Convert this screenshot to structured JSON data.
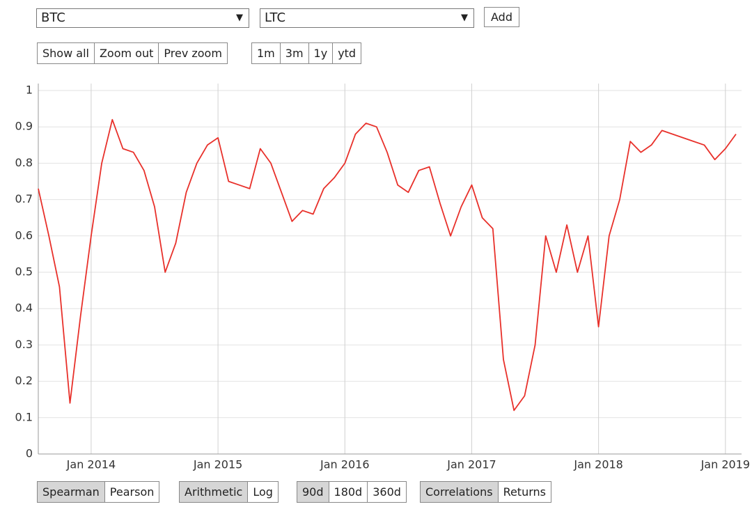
{
  "selectors": [
    "BTC",
    "LTC"
  ],
  "add_button": "Add",
  "zoom_buttons": [
    "Show all",
    "Zoom out",
    "Prev zoom"
  ],
  "range_buttons": [
    "1m",
    "3m",
    "1y",
    "ytd"
  ],
  "option_groups": [
    {
      "buttons": [
        "Spearman",
        "Pearson"
      ],
      "selected": 0
    },
    {
      "buttons": [
        "Arithmetic",
        "Log"
      ],
      "selected": 0
    },
    {
      "buttons": [
        "90d",
        "180d",
        "360d"
      ],
      "selected": 0
    },
    {
      "buttons": [
        "Correlations",
        "Returns"
      ],
      "selected": 0
    }
  ],
  "chart_data": {
    "type": "line",
    "x": [
      "2013-08",
      "2013-09",
      "2013-10",
      "2013-11",
      "2013-12",
      "2014-01",
      "2014-02",
      "2014-03",
      "2014-04",
      "2014-05",
      "2014-06",
      "2014-07",
      "2014-08",
      "2014-09",
      "2014-10",
      "2014-11",
      "2014-12",
      "2015-01",
      "2015-02",
      "2015-03",
      "2015-04",
      "2015-05",
      "2015-06",
      "2015-07",
      "2015-08",
      "2015-09",
      "2015-10",
      "2015-11",
      "2015-12",
      "2016-01",
      "2016-02",
      "2016-03",
      "2016-04",
      "2016-05",
      "2016-06",
      "2016-07",
      "2016-08",
      "2016-09",
      "2016-10",
      "2016-11",
      "2016-12",
      "2017-01",
      "2017-02",
      "2017-03",
      "2017-04",
      "2017-05",
      "2017-06",
      "2017-07",
      "2017-08",
      "2017-09",
      "2017-10",
      "2017-11",
      "2017-12",
      "2018-01",
      "2018-02",
      "2018-03",
      "2018-04",
      "2018-05",
      "2018-06",
      "2018-07",
      "2018-08",
      "2018-09",
      "2018-10",
      "2018-11",
      "2018-12",
      "2019-01",
      "2019-02"
    ],
    "series": [
      {
        "color": "#e8302a",
        "values": [
          0.73,
          0.6,
          0.46,
          0.14,
          0.38,
          0.6,
          0.8,
          0.92,
          0.84,
          0.83,
          0.78,
          0.68,
          0.5,
          0.58,
          0.72,
          0.8,
          0.85,
          0.87,
          0.75,
          0.74,
          0.73,
          0.84,
          0.8,
          0.72,
          0.64,
          0.67,
          0.66,
          0.73,
          0.76,
          0.8,
          0.88,
          0.91,
          0.9,
          0.83,
          0.74,
          0.72,
          0.78,
          0.79,
          0.69,
          0.6,
          0.68,
          0.74,
          0.65,
          0.62,
          0.26,
          0.12,
          0.16,
          0.3,
          0.6,
          0.5,
          0.63,
          0.5,
          0.6,
          0.35,
          0.6,
          0.7,
          0.86,
          0.83,
          0.85,
          0.89,
          0.88,
          0.87,
          0.86,
          0.85,
          0.81,
          0.84,
          0.88
        ]
      }
    ],
    "xlim": [
      "2013-08",
      "2019-02"
    ],
    "xticks": [
      {
        "value": "2014-01",
        "label": "Jan 2014"
      },
      {
        "value": "2015-01",
        "label": "Jan 2015"
      },
      {
        "value": "2016-01",
        "label": "Jan 2016"
      },
      {
        "value": "2017-01",
        "label": "Jan 2017"
      },
      {
        "value": "2018-01",
        "label": "Jan 2018"
      },
      {
        "value": "2019-01",
        "label": "Jan 2019"
      }
    ],
    "ylim": [
      0,
      1
    ],
    "yticks": [
      0,
      0.1,
      0.2,
      0.3,
      0.4,
      0.5,
      0.6,
      0.7,
      0.8,
      0.9,
      1
    ],
    "grid": true
  }
}
